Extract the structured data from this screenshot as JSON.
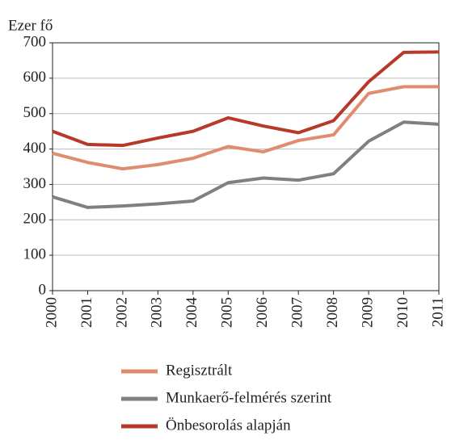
{
  "chart_data": {
    "type": "line",
    "y_label": "Ezer fő",
    "categories": [
      "2000",
      "2001",
      "2002",
      "2003",
      "2004",
      "2005",
      "2006",
      "2007",
      "2008",
      "2009",
      "2010",
      "2011"
    ],
    "series": [
      {
        "name": "Regisztrált",
        "color": "#e08c6e",
        "values": [
          388,
          362,
          344,
          356,
          374,
          407,
          392,
          424,
          440,
          557,
          576,
          576
        ]
      },
      {
        "name": "Munkaerő-felmérés szerint",
        "color": "#808080",
        "values": [
          265,
          235,
          239,
          245,
          253,
          305,
          318,
          312,
          330,
          422,
          476,
          470
        ]
      },
      {
        "name": "Önbesorolás alapján",
        "color": "#b8392a",
        "values": [
          450,
          413,
          410,
          431,
          450,
          488,
          465,
          446,
          480,
          590,
          673,
          674
        ]
      }
    ],
    "ylim": [
      0,
      700
    ],
    "yticks": [
      0,
      100,
      200,
      300,
      400,
      500,
      600,
      700
    ],
    "grid": true
  }
}
